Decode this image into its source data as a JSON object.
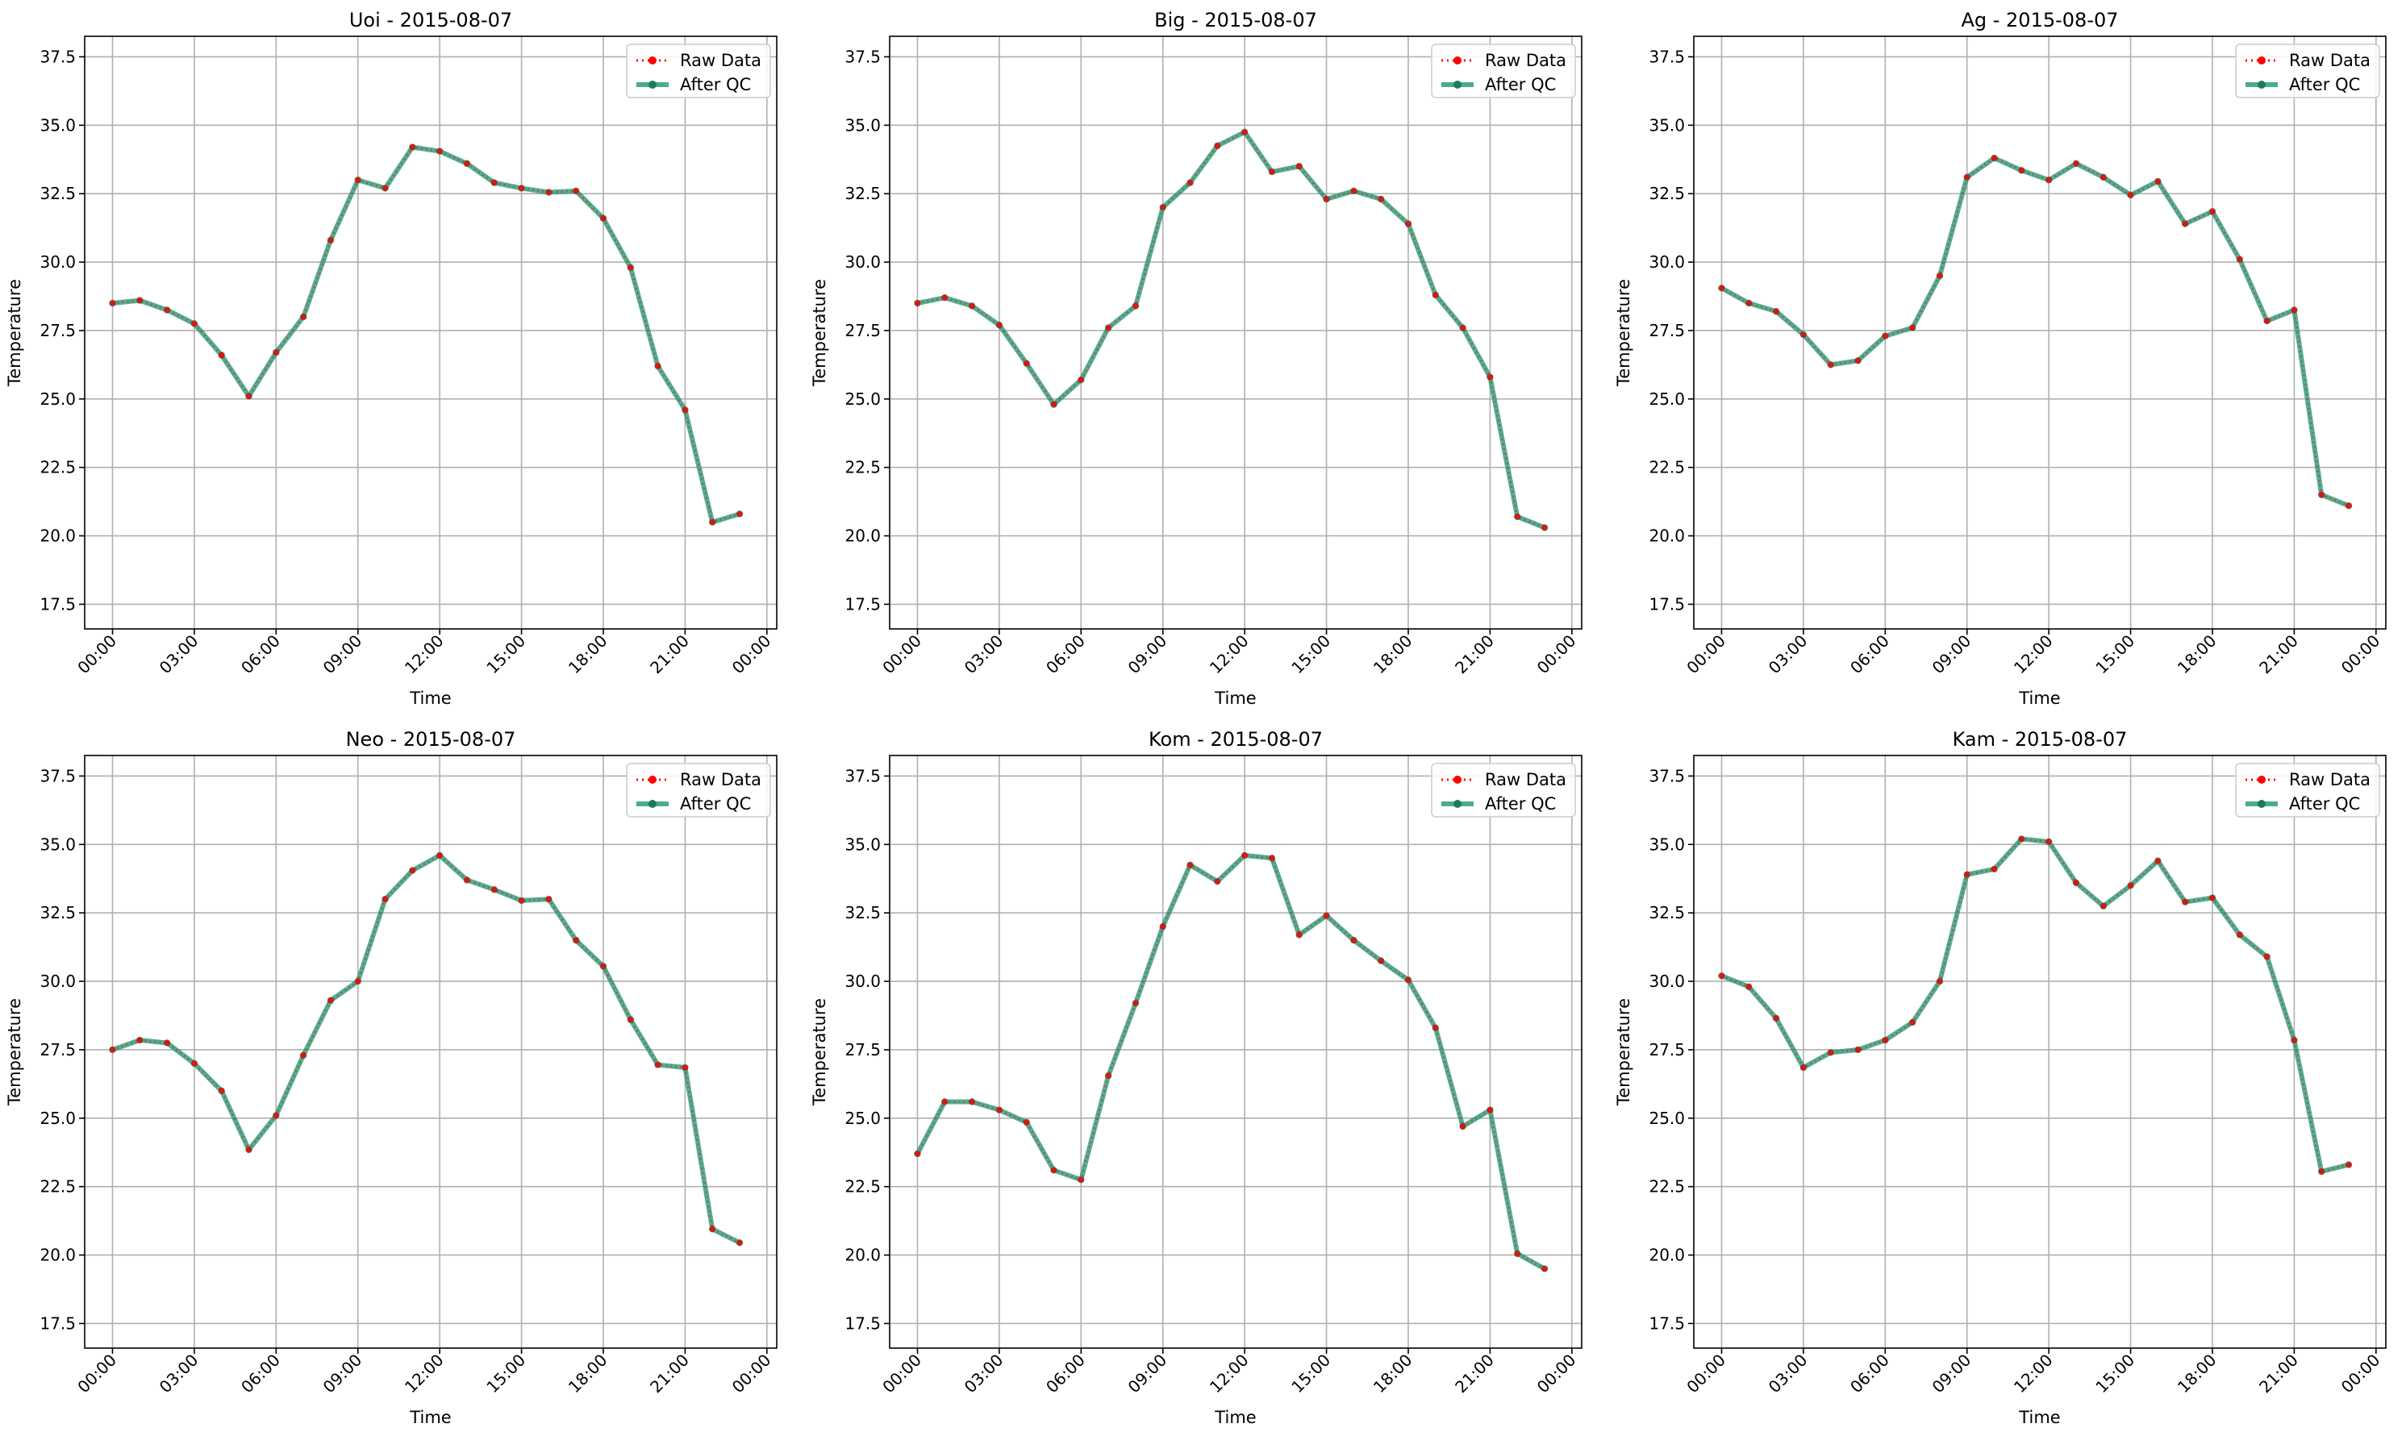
{
  "chart_data": [
    {
      "type": "line",
      "title": "Uoi - 2015-08-07",
      "xlabel": "Time",
      "ylabel": "Temperature",
      "ylim": [
        16.6,
        38.25
      ],
      "yticks": [
        "17.5",
        "20.0",
        "22.5",
        "25.0",
        "27.5",
        "30.0",
        "32.5",
        "35.0",
        "37.5"
      ],
      "xticks": [
        "00:00",
        "03:00",
        "06:00",
        "09:00",
        "12:00",
        "15:00",
        "18:00",
        "21:00",
        "00:00"
      ],
      "x": [
        "00:00",
        "01:00",
        "02:00",
        "03:00",
        "04:00",
        "05:00",
        "06:00",
        "07:00",
        "08:00",
        "09:00",
        "10:00",
        "11:00",
        "12:00",
        "13:00",
        "14:00",
        "15:00",
        "16:00",
        "17:00",
        "18:00",
        "19:00",
        "20:00",
        "21:00",
        "22:00",
        "23:00"
      ],
      "grid": true,
      "legend_position": "top-right",
      "series": [
        {
          "name": "Raw Data",
          "values": [
            28.5,
            28.6,
            28.25,
            27.75,
            26.6,
            25.1,
            26.7,
            28.0,
            30.8,
            33.0,
            32.7,
            34.2,
            34.05,
            33.6,
            32.9,
            32.7,
            32.55,
            32.6,
            31.6,
            29.8,
            26.2,
            24.6,
            20.5,
            20.8
          ]
        },
        {
          "name": "After QC",
          "values": [
            28.5,
            28.6,
            28.25,
            27.75,
            26.6,
            25.1,
            26.7,
            28.0,
            30.8,
            33.0,
            32.7,
            34.2,
            34.05,
            33.6,
            32.9,
            32.7,
            32.55,
            32.6,
            31.6,
            29.8,
            26.2,
            24.6,
            20.5,
            20.8
          ]
        }
      ]
    },
    {
      "type": "line",
      "title": "Big - 2015-08-07",
      "xlabel": "Time",
      "ylabel": "Temperature",
      "ylim": [
        16.6,
        38.25
      ],
      "yticks": [
        "17.5",
        "20.0",
        "22.5",
        "25.0",
        "27.5",
        "30.0",
        "32.5",
        "35.0",
        "37.5"
      ],
      "xticks": [
        "00:00",
        "03:00",
        "06:00",
        "09:00",
        "12:00",
        "15:00",
        "18:00",
        "21:00",
        "00:00"
      ],
      "x": [
        "00:00",
        "01:00",
        "02:00",
        "03:00",
        "04:00",
        "05:00",
        "06:00",
        "07:00",
        "08:00",
        "09:00",
        "10:00",
        "11:00",
        "12:00",
        "13:00",
        "14:00",
        "15:00",
        "16:00",
        "17:00",
        "18:00",
        "19:00",
        "20:00",
        "21:00",
        "22:00",
        "23:00"
      ],
      "grid": true,
      "legend_position": "top-right",
      "series": [
        {
          "name": "Raw Data",
          "values": [
            28.5,
            28.7,
            28.4,
            27.7,
            26.3,
            24.8,
            25.7,
            27.6,
            28.4,
            32.0,
            32.9,
            34.25,
            34.75,
            33.3,
            33.5,
            32.3,
            32.6,
            32.3,
            31.4,
            28.8,
            27.6,
            25.8,
            20.7,
            20.3
          ]
        },
        {
          "name": "After QC",
          "values": [
            28.5,
            28.7,
            28.4,
            27.7,
            26.3,
            24.8,
            25.7,
            27.6,
            28.4,
            32.0,
            32.9,
            34.25,
            34.75,
            33.3,
            33.5,
            32.3,
            32.6,
            32.3,
            31.4,
            28.8,
            27.6,
            25.8,
            20.7,
            20.3
          ]
        }
      ]
    },
    {
      "type": "line",
      "title": "Ag - 2015-08-07",
      "xlabel": "Time",
      "ylabel": "Temperature",
      "ylim": [
        16.6,
        38.25
      ],
      "yticks": [
        "17.5",
        "20.0",
        "22.5",
        "25.0",
        "27.5",
        "30.0",
        "32.5",
        "35.0",
        "37.5"
      ],
      "xticks": [
        "00:00",
        "03:00",
        "06:00",
        "09:00",
        "12:00",
        "15:00",
        "18:00",
        "21:00",
        "00:00"
      ],
      "x": [
        "00:00",
        "01:00",
        "02:00",
        "03:00",
        "04:00",
        "05:00",
        "06:00",
        "07:00",
        "08:00",
        "09:00",
        "10:00",
        "11:00",
        "12:00",
        "13:00",
        "14:00",
        "15:00",
        "16:00",
        "17:00",
        "18:00",
        "19:00",
        "20:00",
        "21:00",
        "22:00",
        "23:00"
      ],
      "grid": true,
      "legend_position": "top-right",
      "series": [
        {
          "name": "Raw Data",
          "values": [
            29.05,
            28.5,
            28.2,
            27.35,
            26.25,
            26.4,
            27.3,
            27.6,
            29.5,
            33.1,
            33.8,
            33.35,
            33.0,
            33.6,
            33.1,
            32.45,
            32.95,
            31.4,
            31.85,
            30.1,
            27.85,
            28.25,
            21.5,
            21.1
          ]
        },
        {
          "name": "After QC",
          "values": [
            29.05,
            28.5,
            28.2,
            27.35,
            26.25,
            26.4,
            27.3,
            27.6,
            29.5,
            33.1,
            33.8,
            33.35,
            33.0,
            33.6,
            33.1,
            32.45,
            32.95,
            31.4,
            31.85,
            30.1,
            27.85,
            28.25,
            21.5,
            21.1
          ]
        }
      ]
    },
    {
      "type": "line",
      "title": "Neo - 2015-08-07",
      "xlabel": "Time",
      "ylabel": "Temperature",
      "ylim": [
        16.6,
        38.25
      ],
      "yticks": [
        "17.5",
        "20.0",
        "22.5",
        "25.0",
        "27.5",
        "30.0",
        "32.5",
        "35.0",
        "37.5"
      ],
      "xticks": [
        "00:00",
        "03:00",
        "06:00",
        "09:00",
        "12:00",
        "15:00",
        "18:00",
        "21:00",
        "00:00"
      ],
      "x": [
        "00:00",
        "01:00",
        "02:00",
        "03:00",
        "04:00",
        "05:00",
        "06:00",
        "07:00",
        "08:00",
        "09:00",
        "10:00",
        "11:00",
        "12:00",
        "13:00",
        "14:00",
        "15:00",
        "16:00",
        "17:00",
        "18:00",
        "19:00",
        "20:00",
        "21:00",
        "22:00",
        "23:00"
      ],
      "grid": true,
      "legend_position": "top-right",
      "series": [
        {
          "name": "Raw Data",
          "values": [
            27.5,
            27.85,
            27.75,
            27.0,
            26.0,
            23.85,
            25.1,
            27.3,
            29.3,
            30.0,
            33.0,
            34.05,
            34.6,
            33.7,
            33.35,
            32.95,
            33.0,
            31.5,
            30.55,
            28.6,
            26.95,
            26.85,
            20.95,
            20.45
          ]
        },
        {
          "name": "After QC",
          "values": [
            27.5,
            27.85,
            27.75,
            27.0,
            26.0,
            23.85,
            25.1,
            27.3,
            29.3,
            30.0,
            33.0,
            34.05,
            34.6,
            33.7,
            33.35,
            32.95,
            33.0,
            31.5,
            30.55,
            28.6,
            26.95,
            26.85,
            20.95,
            20.45
          ]
        }
      ]
    },
    {
      "type": "line",
      "title": "Kom - 2015-08-07",
      "xlabel": "Time",
      "ylabel": "Temperature",
      "ylim": [
        16.6,
        38.25
      ],
      "yticks": [
        "17.5",
        "20.0",
        "22.5",
        "25.0",
        "27.5",
        "30.0",
        "32.5",
        "35.0",
        "37.5"
      ],
      "xticks": [
        "00:00",
        "03:00",
        "06:00",
        "09:00",
        "12:00",
        "15:00",
        "18:00",
        "21:00",
        "00:00"
      ],
      "x": [
        "00:00",
        "01:00",
        "02:00",
        "03:00",
        "04:00",
        "05:00",
        "06:00",
        "07:00",
        "08:00",
        "09:00",
        "10:00",
        "11:00",
        "12:00",
        "13:00",
        "14:00",
        "15:00",
        "16:00",
        "17:00",
        "18:00",
        "19:00",
        "20:00",
        "21:00",
        "22:00",
        "23:00"
      ],
      "grid": true,
      "legend_position": "top-right",
      "series": [
        {
          "name": "Raw Data",
          "values": [
            23.7,
            25.6,
            25.6,
            25.3,
            24.85,
            23.1,
            22.75,
            26.55,
            29.2,
            32.0,
            34.25,
            33.65,
            34.6,
            34.5,
            31.7,
            32.4,
            31.5,
            30.75,
            30.05,
            28.3,
            24.7,
            25.3,
            20.05,
            19.5
          ]
        },
        {
          "name": "After QC",
          "values": [
            23.7,
            25.6,
            25.6,
            25.3,
            24.85,
            23.1,
            22.75,
            26.55,
            29.2,
            32.0,
            34.25,
            33.65,
            34.6,
            34.5,
            31.7,
            32.4,
            31.5,
            30.75,
            30.05,
            28.3,
            24.7,
            25.3,
            20.05,
            19.5
          ]
        }
      ]
    },
    {
      "type": "line",
      "title": "Kam - 2015-08-07",
      "xlabel": "Time",
      "ylabel": "Temperature",
      "ylim": [
        16.6,
        38.25
      ],
      "yticks": [
        "17.5",
        "20.0",
        "22.5",
        "25.0",
        "27.5",
        "30.0",
        "32.5",
        "35.0",
        "37.5"
      ],
      "xticks": [
        "00:00",
        "03:00",
        "06:00",
        "09:00",
        "12:00",
        "15:00",
        "18:00",
        "21:00",
        "00:00"
      ],
      "x": [
        "00:00",
        "01:00",
        "02:00",
        "03:00",
        "04:00",
        "05:00",
        "06:00",
        "07:00",
        "08:00",
        "09:00",
        "10:00",
        "11:00",
        "12:00",
        "13:00",
        "14:00",
        "15:00",
        "16:00",
        "17:00",
        "18:00",
        "19:00",
        "20:00",
        "21:00",
        "22:00",
        "23:00"
      ],
      "grid": true,
      "legend_position": "top-right",
      "series": [
        {
          "name": "Raw Data",
          "values": [
            30.2,
            29.8,
            28.65,
            26.85,
            27.4,
            27.5,
            27.85,
            28.5,
            30.0,
            33.9,
            34.1,
            35.2,
            35.1,
            33.6,
            32.75,
            33.5,
            34.4,
            32.9,
            33.05,
            31.7,
            30.9,
            27.85,
            23.05,
            23.3
          ]
        },
        {
          "name": "After QC",
          "values": [
            30.2,
            29.8,
            28.65,
            26.85,
            27.4,
            27.5,
            27.85,
            28.5,
            30.0,
            33.9,
            34.1,
            35.2,
            35.1,
            33.6,
            32.75,
            33.5,
            34.4,
            32.9,
            33.05,
            31.7,
            30.9,
            27.85,
            23.05,
            23.3
          ]
        }
      ]
    }
  ],
  "colors": {
    "raw": "#ff0000",
    "qc": "#2a9d7a",
    "qc_marker": "#1f7a5c",
    "grid": "#b0b0b0",
    "axis": "#000000"
  }
}
